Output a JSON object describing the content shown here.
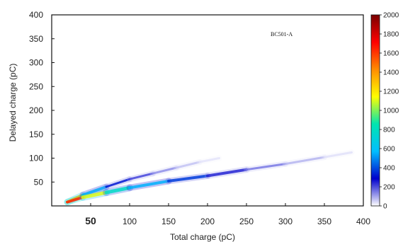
{
  "chart_data": {
    "type": "heatmap",
    "title": "",
    "xlabel": "Total charge (pC)",
    "ylabel": "Delayed charge (pC)",
    "xlim": [
      0,
      400
    ],
    "ylim": [
      0,
      400
    ],
    "x_ticks": [
      50,
      100,
      150,
      200,
      250,
      300,
      350,
      400
    ],
    "y_ticks": [
      50,
      100,
      150,
      200,
      250,
      300,
      350,
      400
    ],
    "annotation": "BC501-A",
    "colorbar": {
      "min": 0,
      "max": 2000,
      "ticks": [
        0,
        200,
        400,
        600,
        800,
        1000,
        1200,
        1400,
        1600,
        1800,
        2000
      ],
      "colormap": [
        "#ffffff",
        "#0000cc",
        "#00bfff",
        "#00e5b0",
        "#ffff00",
        "#ff8c00",
        "#ff0000",
        "#7a0000"
      ]
    },
    "bands": [
      {
        "points": [
          [
            20,
            8
          ],
          [
            40,
            23
          ],
          [
            70,
            40
          ],
          [
            100,
            56
          ],
          [
            130,
            68
          ],
          [
            160,
            80
          ],
          [
            190,
            92
          ],
          [
            215,
            100
          ]
        ],
        "intensity": [
          1900,
          700,
          380,
          260,
          160,
          90,
          45,
          15
        ],
        "width": [
          4,
          4,
          3,
          3,
          3,
          3,
          3,
          2
        ]
      },
      {
        "points": [
          [
            20,
            8
          ],
          [
            40,
            18
          ],
          [
            70,
            28
          ],
          [
            100,
            38
          ],
          [
            150,
            52
          ],
          [
            200,
            63
          ],
          [
            250,
            76
          ],
          [
            300,
            88
          ],
          [
            350,
            102
          ],
          [
            385,
            112
          ]
        ],
        "intensity": [
          2000,
          1300,
          900,
          650,
          450,
          300,
          190,
          110,
          55,
          15
        ],
        "width": [
          4,
          5,
          5,
          4,
          4,
          4,
          3,
          3,
          3,
          2
        ]
      }
    ]
  }
}
